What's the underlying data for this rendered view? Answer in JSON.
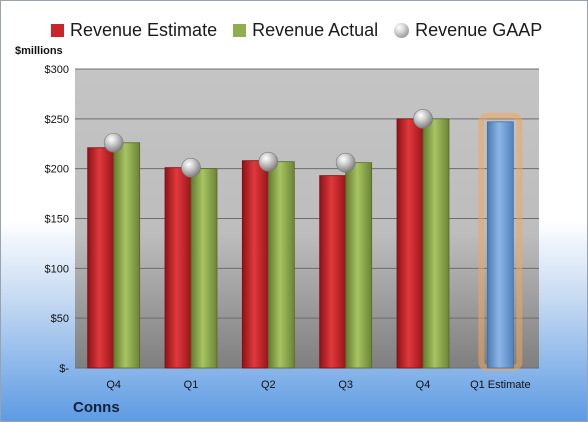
{
  "unit_label": "$millions",
  "company": "Conns",
  "colors": {
    "estimate": "#c9262b",
    "actual": "#8fae4e",
    "gaap": "#a9a9a9",
    "forecast": "#6f9fd6",
    "forecast_glow": "#f2a65a"
  },
  "chart_data": {
    "type": "bar",
    "categories": [
      "Q4",
      "Q1",
      "Q2",
      "Q3",
      "Q4",
      "Q1 Estimate"
    ],
    "series": [
      {
        "name": "Revenue Estimate",
        "values": [
          221,
          201,
          208,
          193,
          250,
          247
        ]
      },
      {
        "name": "Revenue Actual",
        "values": [
          226,
          200,
          207,
          206,
          250,
          null
        ]
      },
      {
        "name": "Revenue GAAP",
        "values": [
          226,
          201,
          207,
          206,
          250,
          null
        ]
      }
    ],
    "ylim": [
      0,
      300
    ],
    "yticks": [
      0,
      50,
      100,
      150,
      200,
      250,
      300
    ],
    "ytick_labels": [
      "$-",
      "$50",
      "$100",
      "$150",
      "$200",
      "$250",
      "$300"
    ],
    "legend_position": "top",
    "grid": true
  }
}
